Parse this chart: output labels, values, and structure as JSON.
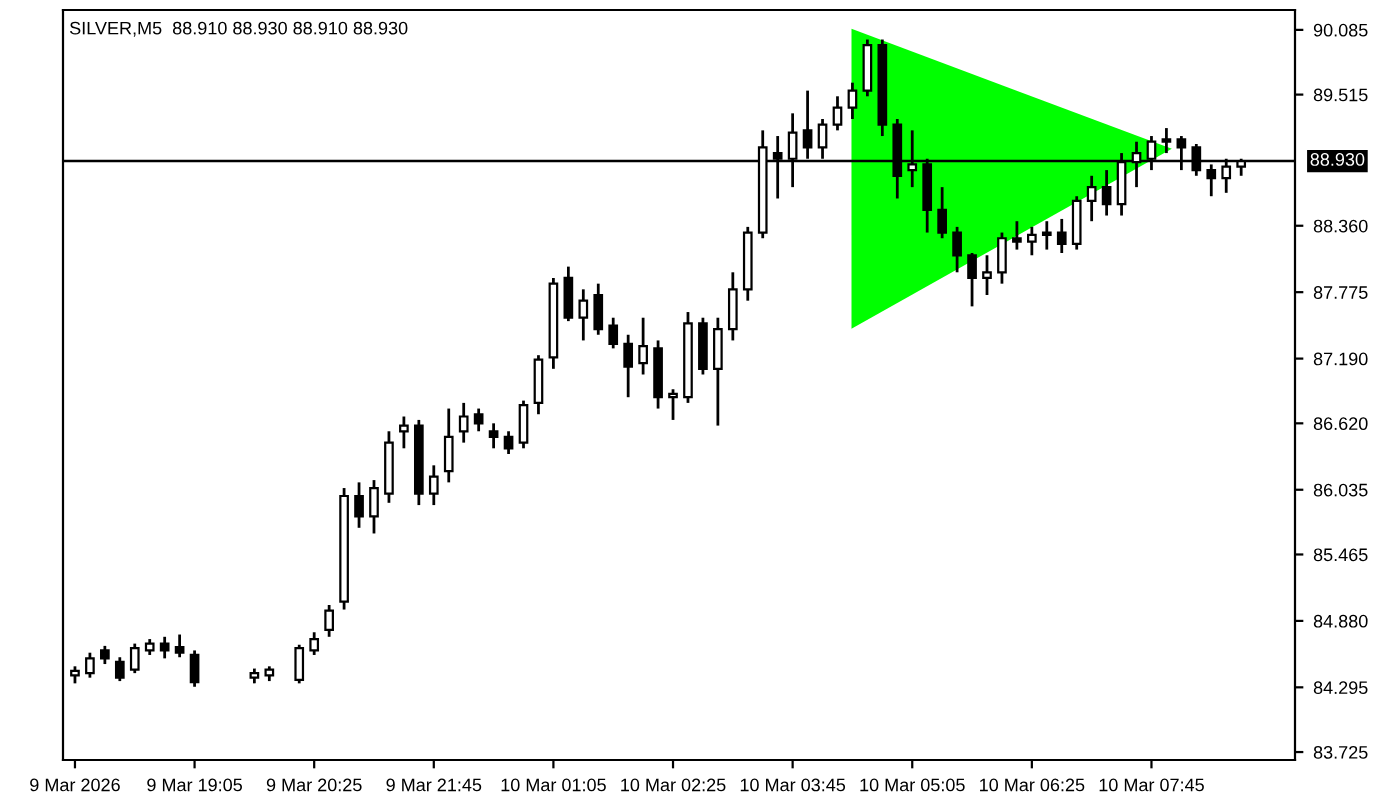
{
  "chart_data": {
    "type": "candlestick",
    "title": "SILVER,M5  88.910 88.930 88.910 88.930",
    "categories": [
      "9 Mar 2026",
      null,
      null,
      null,
      null,
      null,
      null,
      null,
      "9 Mar 19:05",
      null,
      null,
      null,
      null,
      null,
      null,
      null,
      "9 Mar 20:25",
      null,
      null,
      null,
      null,
      null,
      null,
      null,
      "9 Mar 21:45",
      null,
      null,
      null,
      null,
      null,
      null,
      null,
      "10 Mar 01:05",
      null,
      null,
      null,
      null,
      null,
      null,
      null,
      "10 Mar 02:25",
      null,
      null,
      null,
      null,
      null,
      null,
      null,
      "10 Mar 03:45",
      null,
      null,
      null,
      null,
      null,
      null,
      null,
      "10 Mar 05:05",
      null,
      null,
      null,
      null,
      null,
      null,
      null,
      "10 Mar 06:25",
      null,
      null,
      null,
      null,
      null,
      null,
      null,
      "10 Mar 07:45",
      null,
      null,
      null,
      null,
      null,
      null
    ],
    "ohlc": [
      [
        84.4,
        84.48,
        84.33,
        84.44
      ],
      [
        84.42,
        84.6,
        84.38,
        84.55
      ],
      [
        84.62,
        84.66,
        84.5,
        84.55
      ],
      [
        84.52,
        84.56,
        84.35,
        84.38
      ],
      [
        84.45,
        84.68,
        84.42,
        84.64
      ],
      [
        84.62,
        84.72,
        84.58,
        84.68
      ],
      [
        84.68,
        84.74,
        84.55,
        84.62
      ],
      [
        84.65,
        84.76,
        84.56,
        84.6
      ],
      [
        84.58,
        84.62,
        84.3,
        84.34
      ],
      null,
      null,
      null,
      [
        84.38,
        84.46,
        84.33,
        84.42
      ],
      [
        84.4,
        84.48,
        84.35,
        84.45
      ],
      null,
      [
        84.36,
        84.67,
        84.33,
        84.64
      ],
      [
        84.62,
        84.78,
        84.58,
        84.72
      ],
      [
        84.8,
        85.02,
        84.74,
        84.97
      ],
      [
        85.05,
        86.05,
        84.98,
        85.98
      ],
      [
        85.98,
        86.1,
        85.7,
        85.8
      ],
      [
        85.8,
        86.12,
        85.65,
        86.05
      ],
      [
        86.0,
        86.55,
        85.92,
        86.45
      ],
      [
        86.55,
        86.68,
        86.4,
        86.6
      ],
      [
        86.6,
        86.65,
        85.9,
        86.0
      ],
      [
        86.0,
        86.25,
        85.9,
        86.15
      ],
      [
        86.2,
        86.75,
        86.1,
        86.5
      ],
      [
        86.55,
        86.8,
        86.45,
        86.68
      ],
      [
        86.7,
        86.75,
        86.55,
        86.62
      ],
      [
        86.55,
        86.62,
        86.4,
        86.5
      ],
      [
        86.5,
        86.55,
        86.35,
        86.4
      ],
      [
        86.45,
        86.82,
        86.4,
        86.78
      ],
      [
        86.8,
        87.22,
        86.7,
        87.18
      ],
      [
        87.2,
        87.9,
        87.1,
        87.85
      ],
      [
        87.9,
        88.0,
        87.52,
        87.55
      ],
      [
        87.55,
        87.8,
        87.35,
        87.7
      ],
      [
        87.75,
        87.85,
        87.4,
        87.45
      ],
      [
        87.48,
        87.55,
        87.28,
        87.32
      ],
      [
        87.32,
        87.4,
        86.85,
        87.12
      ],
      [
        87.15,
        87.55,
        87.05,
        87.3
      ],
      [
        87.28,
        87.35,
        86.75,
        86.85
      ],
      [
        86.85,
        86.92,
        86.65,
        86.88
      ],
      [
        86.85,
        87.6,
        86.8,
        87.5
      ],
      [
        87.5,
        87.55,
        87.05,
        87.1
      ],
      [
        87.1,
        87.55,
        86.6,
        87.45
      ],
      [
        87.45,
        87.95,
        87.35,
        87.8
      ],
      [
        87.8,
        88.35,
        87.7,
        88.3
      ],
      [
        88.3,
        89.2,
        88.25,
        89.05
      ],
      [
        89.0,
        89.15,
        88.6,
        88.95
      ],
      [
        88.95,
        89.35,
        88.7,
        89.18
      ],
      [
        89.2,
        89.55,
        88.95,
        89.05
      ],
      [
        89.05,
        89.3,
        88.95,
        89.25
      ],
      [
        89.25,
        89.5,
        89.2,
        89.4
      ],
      [
        89.4,
        89.62,
        89.3,
        89.55
      ],
      [
        89.55,
        90.0,
        89.5,
        89.95
      ],
      [
        89.95,
        90.0,
        89.15,
        89.25
      ],
      [
        89.25,
        89.3,
        88.6,
        88.8
      ],
      [
        88.85,
        89.2,
        88.7,
        88.9
      ],
      [
        88.9,
        88.95,
        88.3,
        88.5
      ],
      [
        88.5,
        88.7,
        88.25,
        88.3
      ],
      [
        88.3,
        88.35,
        87.95,
        88.1
      ],
      [
        88.1,
        88.12,
        87.65,
        87.9
      ],
      [
        87.9,
        88.1,
        87.75,
        87.95
      ],
      [
        87.95,
        88.3,
        87.85,
        88.25
      ],
      [
        88.25,
        88.4,
        88.15,
        88.22
      ],
      [
        88.22,
        88.35,
        88.1,
        88.28
      ],
      [
        88.28,
        88.4,
        88.15,
        88.3
      ],
      [
        88.3,
        88.42,
        88.12,
        88.2
      ],
      [
        88.2,
        88.62,
        88.15,
        88.58
      ],
      [
        88.58,
        88.8,
        88.4,
        88.7
      ],
      [
        88.7,
        88.85,
        88.45,
        88.55
      ],
      [
        88.55,
        89.0,
        88.45,
        88.92
      ],
      [
        88.92,
        89.1,
        88.7,
        89.0
      ],
      [
        88.95,
        89.15,
        88.85,
        89.1
      ],
      [
        89.1,
        89.22,
        89.0,
        89.12
      ],
      [
        89.12,
        89.15,
        88.85,
        89.05
      ],
      [
        89.05,
        89.08,
        88.8,
        88.85
      ],
      [
        88.85,
        88.9,
        88.62,
        88.78
      ],
      [
        88.78,
        88.95,
        88.65,
        88.88
      ],
      [
        88.88,
        88.95,
        88.8,
        88.93
      ]
    ],
    "ylim": [
      83.655,
      90.26
    ],
    "yticks": [
      90.085,
      89.515,
      {
        "value": 88.36,
        "label": "88.360"
      },
      87.775,
      {
        "value": 87.19,
        "label": "87.190"
      },
      {
        "value": 86.62,
        "label": "86.620"
      },
      86.035,
      85.465,
      {
        "value": 84.88,
        "label": "84.880"
      },
      84.295,
      83.725
    ],
    "ref_lines": [
      {
        "axis": "y",
        "value": 88.93,
        "label": "88.930",
        "color": "#000000"
      }
    ],
    "grid": false
  }
}
